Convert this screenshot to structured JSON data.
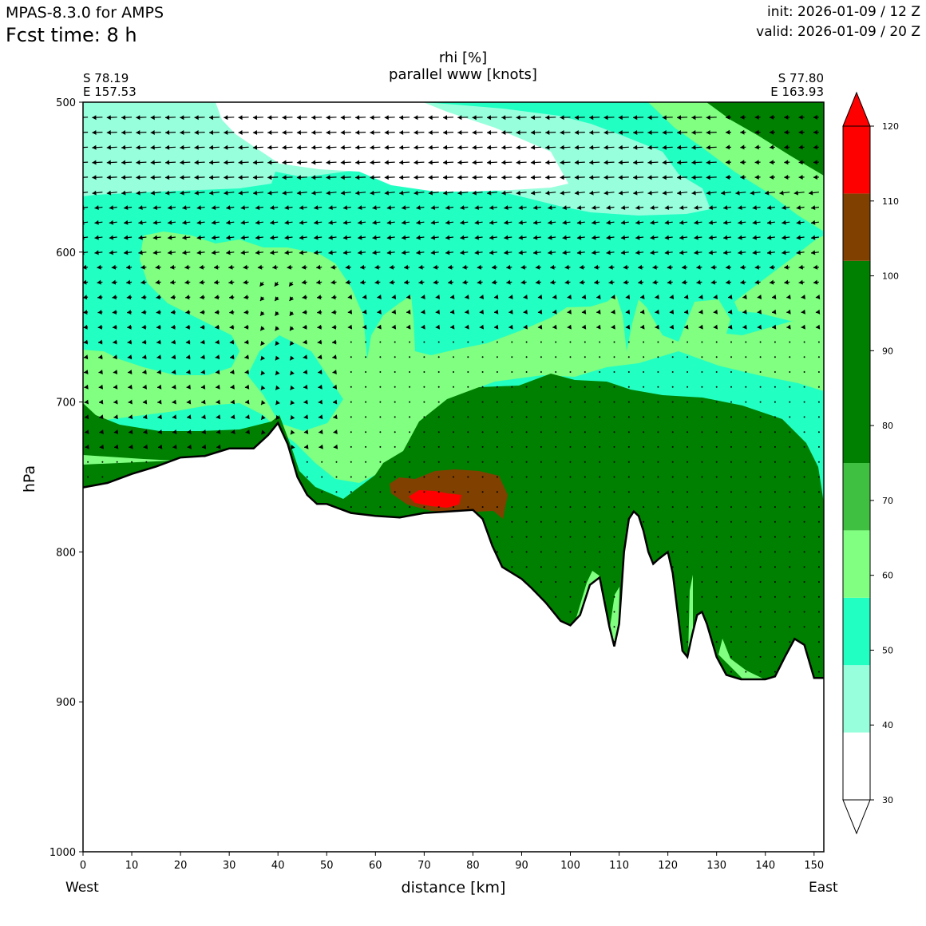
{
  "header": {
    "model": "MPAS-8.3.0 for AMPS",
    "fcst": "Fcst time:    8 h",
    "init": "init: 2026-01-09 / 12 Z",
    "valid": "valid: 2026-01-09 / 20 Z"
  },
  "plot": {
    "title_line1": "rhi [%]",
    "title_line2": "parallel www [knots]",
    "left_lat": "S 78.19",
    "left_lon": "E 157.53",
    "right_lat": "S 77.80",
    "right_lon": "E 163.93",
    "west_label": "West",
    "east_label": "East"
  },
  "chart_data": {
    "type": "heatmap",
    "title": "rhi [%]",
    "subtitle": "parallel www [knots]",
    "xlabel": "distance [km]",
    "ylabel": "hPa",
    "xlim": [
      0,
      152
    ],
    "ylim": [
      1000,
      500
    ],
    "x_ticks": [
      0,
      10,
      20,
      30,
      40,
      50,
      60,
      70,
      80,
      90,
      100,
      110,
      120,
      130,
      140,
      150
    ],
    "y_ticks": [
      500,
      600,
      700,
      800,
      900,
      1000
    ],
    "colorbar": {
      "ticks": [
        30,
        40,
        50,
        60,
        70,
        80,
        90,
        100,
        110,
        120
      ],
      "bins": [
        {
          "from": 30,
          "to": 39,
          "color": "#ffffff"
        },
        {
          "from": 39,
          "to": 48,
          "color": "#98ffdd"
        },
        {
          "from": 48,
          "to": 57,
          "color": "#22ffc3"
        },
        {
          "from": 57,
          "to": 66,
          "color": "#80ff80"
        },
        {
          "from": 66,
          "to": 75,
          "color": "#40c040"
        },
        {
          "from": 75,
          "to": 102,
          "color": "#008000"
        },
        {
          "from": 102,
          "to": 111,
          "color": "#804000"
        },
        {
          "from": 111,
          "to": 120,
          "color": "#ff0000"
        }
      ]
    },
    "terrain_surface": {
      "x": [
        0,
        5,
        10,
        15,
        20,
        25,
        30,
        35,
        38,
        40,
        42,
        44,
        46,
        48,
        50,
        55,
        60,
        65,
        70,
        75,
        80,
        82,
        84,
        86,
        88,
        90,
        92,
        95,
        98,
        100,
        102,
        104,
        106,
        108,
        109,
        110,
        111,
        112,
        113,
        114,
        115,
        116,
        117,
        118,
        120,
        121,
        122,
        123,
        124,
        125,
        126,
        127,
        128,
        130,
        132,
        135,
        138,
        140,
        142,
        144,
        146,
        148,
        150,
        152
      ],
      "p": [
        757,
        754,
        748,
        743,
        737,
        736,
        731,
        731,
        722,
        714,
        728,
        750,
        762,
        768,
        768,
        774,
        776,
        777,
        774,
        773,
        772,
        778,
        796,
        810,
        814,
        818,
        824,
        834,
        846,
        849,
        842,
        822,
        817,
        850,
        863,
        848,
        800,
        778,
        773,
        776,
        786,
        800,
        808,
        805,
        800,
        814,
        840,
        866,
        870,
        855,
        842,
        840,
        848,
        870,
        882,
        885,
        885,
        885,
        883,
        870,
        858,
        862,
        884,
        884
      ]
    }
  }
}
